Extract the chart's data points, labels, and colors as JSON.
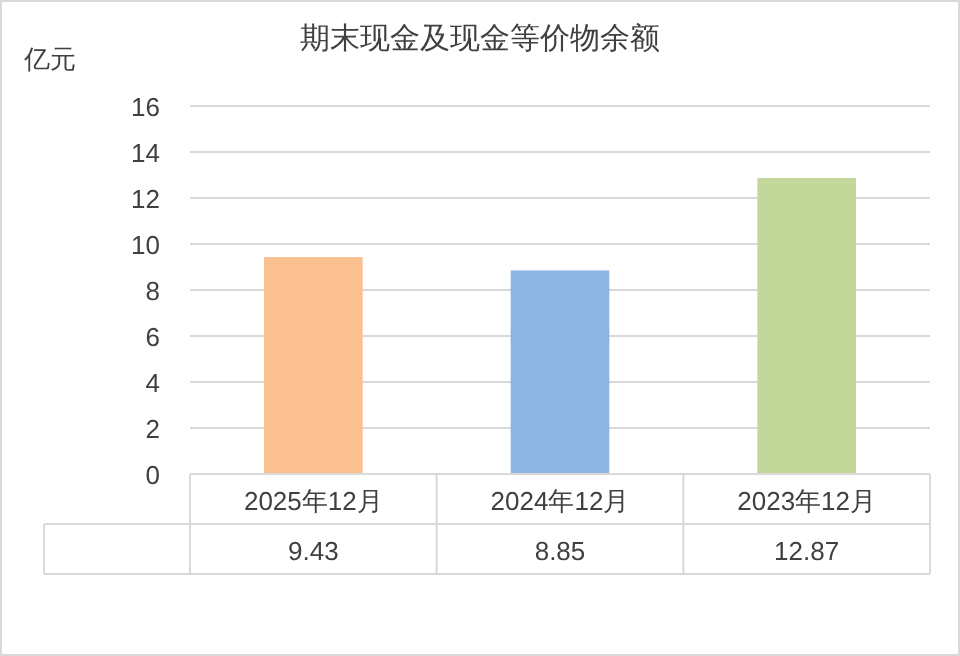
{
  "chart_data": {
    "type": "bar",
    "title": "期末现金及现金等价物余额",
    "ylabel": "亿元",
    "categories": [
      "2025年12月",
      "2024年12月",
      "2023年12月"
    ],
    "series": [
      {
        "values": [
          9.43,
          8.85,
          12.87
        ],
        "colors": [
          "#fac090",
          "#8db4e2",
          "#c4d79b"
        ]
      }
    ],
    "ylim": [
      0,
      16
    ],
    "yticks": [
      0,
      2,
      4,
      6,
      8,
      10,
      12,
      14,
      16
    ],
    "grid": "y",
    "data_labels": true
  }
}
